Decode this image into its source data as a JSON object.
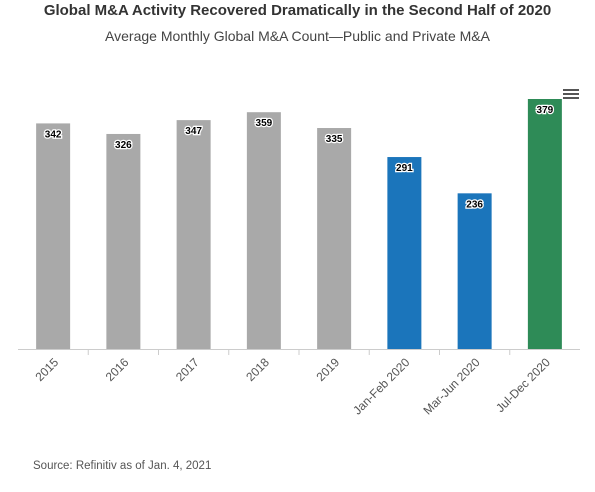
{
  "title": "Global M&A Activity Recovered Dramatically in the Second Half of 2020",
  "subtitle": "Average Monthly Global M&A Count—Public and Private M&A",
  "source": "Source: Refinitiv as of Jan. 4, 2021",
  "menu_icon": "hamburger-menu-icon",
  "chart_data": {
    "type": "bar",
    "title": "Global M&A Activity Recovered Dramatically in the Second Half of 2020",
    "subtitle": "Average Monthly Global M&A Count—Public and Private M&A",
    "xlabel": "",
    "ylabel": "",
    "categories": [
      "2015",
      "2016",
      "2017",
      "2018",
      "2019",
      "Jan-Feb 2020",
      "Mar-Jun 2020",
      "Jul-Dec 2020"
    ],
    "values": [
      342,
      326,
      347,
      359,
      335,
      291,
      236,
      379
    ],
    "colors": [
      "#a9a9a9",
      "#a9a9a9",
      "#a9a9a9",
      "#a9a9a9",
      "#a9a9a9",
      "#1b75bb",
      "#1b75bb",
      "#2e8b57"
    ],
    "ylim": [
      0,
      400
    ],
    "grid": false,
    "legend": "none"
  }
}
